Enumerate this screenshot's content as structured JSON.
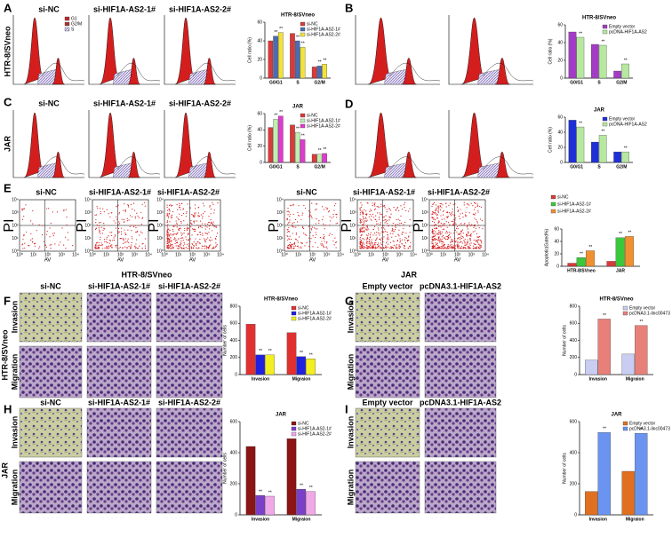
{
  "letters": [
    "A",
    "B",
    "C",
    "D",
    "E",
    "F",
    "G",
    "H",
    "I"
  ],
  "si_headers": [
    "si-NC",
    "si-HIF1A-AS2-1#",
    "si-HIF1A-AS2-2#"
  ],
  "rescue_headers": [
    "Empty vector",
    "pcDNA3.1-HIF1A-AS2"
  ],
  "cell_lines": [
    "HTR-8/SVneo",
    "JAR"
  ],
  "assay_rows": [
    "Invasion",
    "Migration"
  ],
  "histogram_legend": [
    "G1",
    "G2/M",
    "S"
  ],
  "flow": {
    "x_label": "AV",
    "y_label": "PI",
    "ticks": [
      "10⁰",
      "10¹",
      "10²",
      "10³",
      "10⁴"
    ]
  },
  "chart_data": [
    {
      "type": "bar",
      "title": "HTR-8/SVneo",
      "y_label": "Cell ratio (%)",
      "categories": [
        "G0/G1",
        "S",
        "G2/M"
      ],
      "ylim": [
        0,
        60
      ],
      "yticks": [
        0,
        20,
        40,
        60
      ],
      "legend": "upper right",
      "annotation": "**",
      "series": [
        {
          "name": "si-NC",
          "color": "#d93a3a",
          "values": [
            40,
            48,
            12
          ]
        },
        {
          "name": "si-HIF1A-AS2-1#",
          "color": "#4b6cb0",
          "values": [
            45,
            40,
            13
          ],
          "annotated": true
        },
        {
          "name": "si-HIF1A-AS2-2#",
          "color": "#f2e23a",
          "values": [
            49,
            33,
            15
          ],
          "annotated": true
        }
      ]
    },
    {
      "type": "bar",
      "title": "HTR-8/SVneo",
      "y_label": "Cell ratio (%)",
      "categories": [
        "G0/G1",
        "S",
        "G2/M"
      ],
      "ylim": [
        0,
        60
      ],
      "yticks": [
        0,
        20,
        40,
        60
      ],
      "legend": "upper right",
      "annotation": "**",
      "series": [
        {
          "name": "Empty vector",
          "color": "#a33cc4",
          "values": [
            52,
            38,
            8
          ]
        },
        {
          "name": "pcDNA-HIF1A-AS2",
          "color": "#b6e8a0",
          "values": [
            46,
            37,
            16
          ],
          "annotated": true
        }
      ]
    },
    {
      "type": "bar",
      "title": "JAR",
      "y_label": "Cell ratio (%)",
      "categories": [
        "G0/G1",
        "S",
        "G2/M"
      ],
      "ylim": [
        0,
        60
      ],
      "yticks": [
        0,
        20,
        40,
        60
      ],
      "legend": "upper right",
      "annotation": "**",
      "series": [
        {
          "name": "si-NC",
          "color": "#d93a3a",
          "values": [
            43,
            46,
            10
          ]
        },
        {
          "name": "si-HIF1A-AS2-1#",
          "color": "#bfeeb0",
          "values": [
            53,
            37,
            10
          ],
          "annotated": true
        },
        {
          "name": "si-HIF1A-AS2-2#",
          "color": "#e03ad0",
          "values": [
            57,
            28,
            11
          ],
          "annotated": true
        }
      ]
    },
    {
      "type": "bar",
      "title": "JAR",
      "y_label": "Cell ratio (%)",
      "categories": [
        "G0/G1",
        "S",
        "G2/M"
      ],
      "ylim": [
        0,
        60
      ],
      "yticks": [
        0,
        20,
        40,
        60
      ],
      "legend": "upper right",
      "annotation": "**",
      "series": [
        {
          "name": "Empty vector",
          "color": "#1f2fd8",
          "values": [
            56,
            27,
            14
          ]
        },
        {
          "name": "pcDNA-HIF1A-AS2",
          "color": "#b6e8a0",
          "values": [
            47,
            36,
            14
          ],
          "annotated": true
        }
      ]
    },
    {
      "type": "bar",
      "y_label": "Apoptotic(Gated%)",
      "categories": [
        "HTR-8/SVneo",
        "JAR"
      ],
      "ylim": [
        0,
        60
      ],
      "yticks": [
        0,
        20,
        40,
        60
      ],
      "legend": "top",
      "annotation": "**",
      "series": [
        {
          "name": "si-NC",
          "color": "#d93a3a",
          "values": [
            5,
            8
          ]
        },
        {
          "name": "si-HIF1A-AS2-1#",
          "color": "#3cc83c",
          "values": [
            14,
            46
          ],
          "annotated": true
        },
        {
          "name": "si-HIF1A-AS2-2#",
          "color": "#f09030",
          "values": [
            25,
            48
          ],
          "annotated": true
        }
      ]
    },
    {
      "type": "bar",
      "title": "HTR-8/SVneo",
      "y_label": "Number of cells",
      "categories": [
        "Invasion",
        "Migraion"
      ],
      "ylim": [
        0,
        800
      ],
      "yticks": [
        0,
        200,
        400,
        600,
        800
      ],
      "legend": "upper right",
      "annotation": "**",
      "series": [
        {
          "name": "si-NC",
          "color": "#e03030",
          "values": [
            590,
            490
          ]
        },
        {
          "name": "si-HIF1A-AS2-1#",
          "color": "#2020e0",
          "values": [
            230,
            210
          ],
          "annotated": true
        },
        {
          "name": "si-HIF1A-AS2-2#",
          "color": "#f2ee20",
          "values": [
            230,
            185
          ],
          "annotated": true
        }
      ]
    },
    {
      "type": "bar",
      "title": "HTR-8/SVneo",
      "y_label": "Number of cells",
      "categories": [
        "Invasion",
        "Migraion"
      ],
      "ylim": [
        0,
        800
      ],
      "yticks": [
        0,
        200,
        400,
        600,
        800
      ],
      "legend": "upper right",
      "annotation": "**",
      "series": [
        {
          "name": "Empty vector",
          "color": "#c9cdf2",
          "values": [
            170,
            240
          ]
        },
        {
          "name": "pcDNA3.1-linc00473",
          "color": "#e8807a",
          "values": [
            650,
            575
          ],
          "annotated": true
        }
      ]
    },
    {
      "type": "bar",
      "title": "JAR",
      "y_label": "Number of cells",
      "categories": [
        "Invasion",
        "Migraion"
      ],
      "ylim": [
        0,
        600
      ],
      "yticks": [
        0,
        200,
        400,
        600
      ],
      "legend": "upper right",
      "annotation": "**",
      "series": [
        {
          "name": "si-NC",
          "color": "#8b1414",
          "values": [
            440,
            490
          ]
        },
        {
          "name": "si-HIF1A-AS2-1#",
          "color": "#7a40c8",
          "values": [
            125,
            165
          ],
          "annotated": true
        },
        {
          "name": "si-HIF1A-AS2-2#",
          "color": "#f0a8e8",
          "values": [
            120,
            150
          ],
          "annotated": true
        }
      ]
    },
    {
      "type": "bar",
      "title": "JAR",
      "y_label": "Number of cells",
      "categories": [
        "Invasion",
        "Migraion"
      ],
      "ylim": [
        0,
        600
      ],
      "yticks": [
        0,
        200,
        400,
        600
      ],
      "legend": "upper right",
      "annotation": "**",
      "series": [
        {
          "name": "Empty vector",
          "color": "#e07020",
          "values": [
            150,
            280
          ]
        },
        {
          "name": "pcDNA3.1-linc00473",
          "color": "#6a94f0",
          "values": [
            530,
            525
          ],
          "annotated": true
        }
      ]
    }
  ]
}
